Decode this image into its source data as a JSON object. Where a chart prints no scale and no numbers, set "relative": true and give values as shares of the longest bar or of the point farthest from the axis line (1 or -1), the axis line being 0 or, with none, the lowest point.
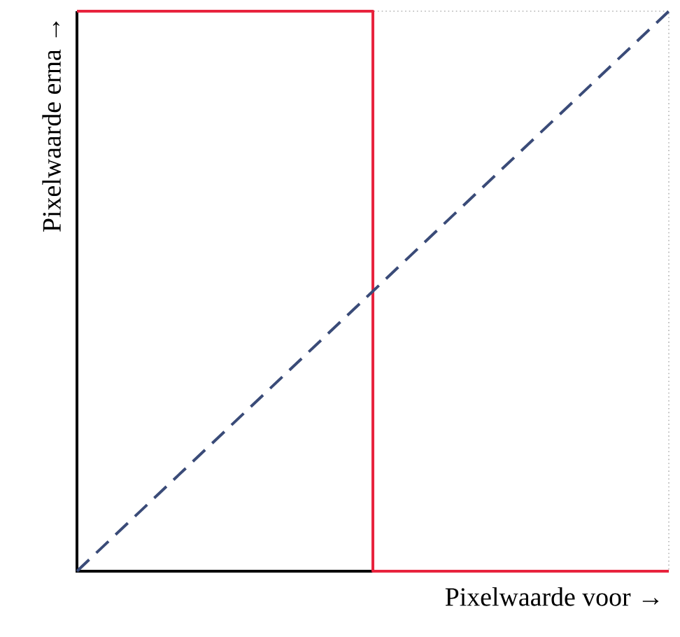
{
  "chart_data": {
    "type": "line",
    "relative": true,
    "xlabel": "Pixelwaarde voor →",
    "ylabel": "Pixelwaarde erna →",
    "categories": [
      null,
      null,
      null
    ],
    "series": [
      {
        "type": "step",
        "color": "#e8233d",
        "values": [
          1,
          0,
          0
        ],
        "line_style": "solid"
      },
      {
        "color": "#3a4b78",
        "values": [
          0,
          0.5,
          1
        ],
        "line_style": "dashed"
      }
    ]
  }
}
